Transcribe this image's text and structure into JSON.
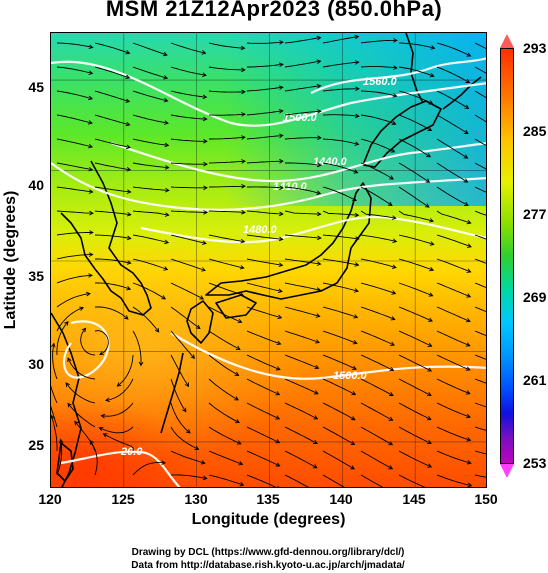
{
  "title": "MSM 21Z12Apr2023 (850.0hPa)",
  "axes": {
    "xlabel": "Longitude (degrees)",
    "ylabel": "Latitude  (degrees)",
    "xticks": [
      "120",
      "125",
      "130",
      "135",
      "140",
      "145",
      "150"
    ],
    "yticks": [
      "45",
      "40",
      "35",
      "30",
      "25"
    ],
    "xlim": [
      120,
      150
    ],
    "ylim": [
      22.4,
      47.6
    ]
  },
  "colorbar": {
    "ticks": [
      "293",
      "285",
      "277",
      "269",
      "261",
      "253"
    ],
    "range": [
      253,
      293
    ],
    "colors": {
      "max": "#ff5a5a",
      "min": "#ff40ff"
    }
  },
  "contour_labels": [
    "1560.0",
    "1500.0",
    "1440.0",
    "1410.0",
    "1480.0",
    "1500.0",
    "20.0"
  ],
  "credits": {
    "line1": "Drawing by DCL (https://www.gfd-dennou.org/library/dcl/)",
    "line2": "Data from http://database.rish.kyoto-u.ac.jp/arch/jmadata/"
  }
}
